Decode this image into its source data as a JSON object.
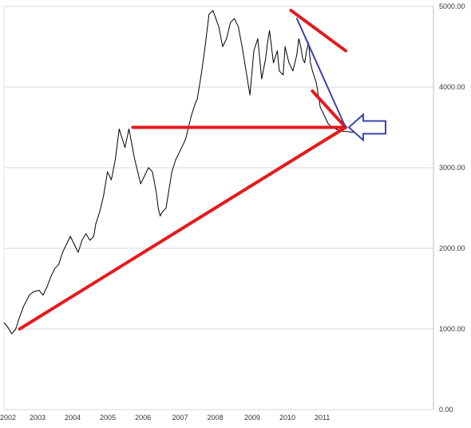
{
  "chart_data": {
    "type": "line",
    "title": "",
    "xlabel": "",
    "ylabel": "",
    "x_tick_labels": [
      "2002",
      "2003",
      "2004",
      "2005",
      "2006",
      "2007",
      "2008",
      "2009",
      "2010",
      "2011"
    ],
    "x_tick_years": [
      2002.0,
      2002.9,
      2003.8,
      2004.7,
      2005.6,
      2006.55,
      2007.45,
      2008.4,
      2009.3,
      2010.2
    ],
    "y_tick_labels": [
      "0.00",
      "1000.00",
      "2000.00",
      "3000.00",
      "4000.00",
      "5000.00"
    ],
    "y_tick_values": [
      0,
      1000,
      2000,
      3000,
      4000,
      5000
    ],
    "xlim": [
      2002.0,
      2013.0
    ],
    "ylim": [
      0,
      5000
    ],
    "grid": "horizontal",
    "legend": "none",
    "series": [
      {
        "color": "#000000",
        "x": [
          2002.0,
          2002.1,
          2002.2,
          2002.3,
          2002.4,
          2002.5,
          2002.65,
          2002.75,
          2002.9,
          2003.0,
          2003.1,
          2003.2,
          2003.3,
          2003.4,
          2003.5,
          2003.6,
          2003.7,
          2003.8,
          2003.9,
          2004.0,
          2004.1,
          2004.2,
          2004.3,
          2004.35,
          2004.45,
          2004.55,
          2004.65,
          2004.75,
          2004.85,
          2004.95,
          2005.1,
          2005.2,
          2005.35,
          2005.5,
          2005.6,
          2005.7,
          2005.8,
          2005.9,
          2005.95,
          2006.0,
          2006.05,
          2006.15,
          2006.3,
          2006.4,
          2006.5,
          2006.65,
          2006.8,
          2006.9,
          2006.95,
          2007.05,
          2007.15,
          2007.25,
          2007.35,
          2007.5,
          2007.6,
          2007.7,
          2007.8,
          2007.9,
          2008.0,
          2008.1,
          2008.2,
          2008.3,
          2008.4,
          2008.5,
          2008.6,
          2008.7,
          2008.75,
          2008.8,
          2008.9,
          2009.0,
          2009.05,
          2009.15,
          2009.2,
          2009.3,
          2009.4,
          2009.5,
          2009.55,
          2009.6,
          2009.65,
          2009.7,
          2009.75,
          2009.8,
          2009.85,
          2009.9,
          2010.0,
          2010.05,
          2010.1,
          2010.2,
          2010.3,
          2010.4,
          2010.5,
          2010.6,
          2010.7,
          2010.8,
          2010.9,
          2011.0,
          2011.05,
          2011.1,
          2011.15,
          2011.2,
          2011.3,
          2011.35,
          2011.4,
          2011.45,
          2011.5,
          2011.6,
          2011.7,
          2011.75
        ],
        "values": [
          1080,
          1020,
          940,
          1000,
          1150,
          1280,
          1420,
          1460,
          1480,
          1420,
          1520,
          1650,
          1750,
          1800,
          1950,
          2050,
          2150,
          2050,
          1950,
          2100,
          2180,
          2100,
          2150,
          2300,
          2450,
          2650,
          2950,
          2850,
          3100,
          3480,
          3250,
          3480,
          3100,
          2800,
          2900,
          3000,
          2950,
          2700,
          2500,
          2400,
          2450,
          2500,
          2950,
          3100,
          3200,
          3350,
          3650,
          3800,
          3850,
          4150,
          4500,
          4900,
          4950,
          4750,
          4500,
          4600,
          4800,
          4850,
          4750,
          4500,
          4200,
          3900,
          4450,
          4600,
          4100,
          4350,
          4550,
          4700,
          4300,
          4450,
          4200,
          4150,
          4500,
          4300,
          4200,
          4400,
          4600,
          4500,
          4350,
          4300,
          4450,
          4550,
          4300,
          4200,
          4050,
          3900,
          3750,
          3650,
          3550,
          3500,
          3480,
          3460,
          3450,
          3450,
          3440,
          3440,
          3440,
          3440,
          3440,
          3440,
          3440,
          3440,
          3440,
          3440,
          3440,
          3440,
          3440,
          3440
        ]
      }
    ],
    "annotations": [
      {
        "kind": "trendline",
        "color": "#e41a1c",
        "points": [
          [
            2002.4,
            1000
          ],
          [
            2010.75,
            3500
          ]
        ]
      },
      {
        "kind": "trendline",
        "color": "#e41a1c",
        "points": [
          [
            2005.3,
            3500
          ],
          [
            2010.75,
            3500
          ]
        ]
      },
      {
        "kind": "trendline",
        "color": "#e41a1c",
        "points": [
          [
            2009.35,
            4950
          ],
          [
            2010.75,
            4450
          ]
        ]
      },
      {
        "kind": "trendline",
        "color": "#e41a1c",
        "points": [
          [
            2009.9,
            3950
          ],
          [
            2010.75,
            3500
          ]
        ]
      },
      {
        "kind": "trendline",
        "color": "#3b45a8",
        "points": [
          [
            2009.5,
            4850
          ],
          [
            2010.75,
            3500
          ]
        ]
      },
      {
        "kind": "arrow-left",
        "color": "#3b45a8",
        "points": [
          [
            2010.75,
            3500
          ]
        ]
      }
    ]
  }
}
